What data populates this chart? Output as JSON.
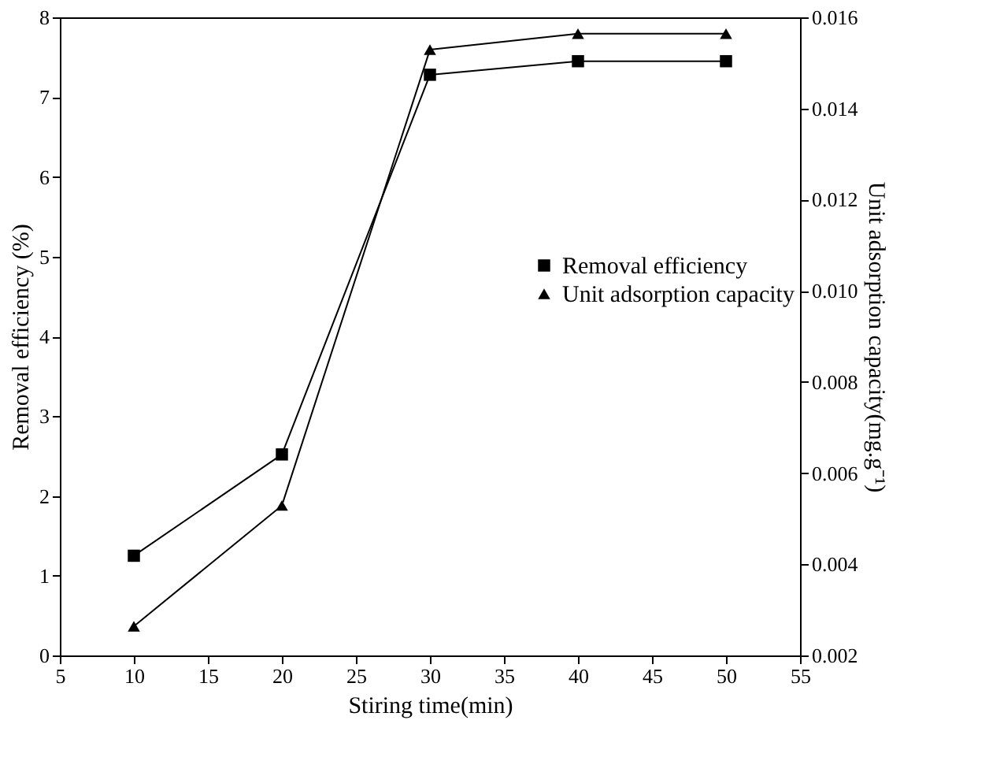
{
  "chart_data": {
    "type": "line",
    "xlabel": "Stiring time(min)",
    "ylabel": "Removal efficiency (%)",
    "y2label": "Unit adsorption capacity(mg.g⁻¹)",
    "x": [
      10,
      20,
      30,
      40,
      50
    ],
    "series": [
      {
        "name": "Removal efficiency",
        "color": "#000000",
        "marker": "square",
        "values": [
          1.25,
          2.52,
          7.28,
          7.45,
          7.45
        ]
      },
      {
        "name": "Unit adsorption capacity",
        "color": "#000000",
        "marker": "triangle",
        "axis": "y2",
        "values": [
          0.00264,
          0.00529,
          0.01529,
          0.01564,
          0.01564
        ]
      }
    ],
    "xlim": [
      5,
      55
    ],
    "xticks": [
      5,
      10,
      15,
      20,
      25,
      30,
      35,
      40,
      45,
      50,
      55
    ],
    "ylim": [
      0,
      8
    ],
    "yticks": [
      0,
      1,
      2,
      3,
      4,
      5,
      6,
      7,
      8
    ],
    "y2lim": [
      0.002,
      0.016
    ],
    "y2ticks": [
      0.002,
      0.004,
      0.006,
      0.008,
      {
        "value": 0.01,
        "label": "0.010"
      },
      0.012,
      0.014,
      0.016
    ],
    "grid": false,
    "legend": "right",
    "line_style": "solid"
  }
}
